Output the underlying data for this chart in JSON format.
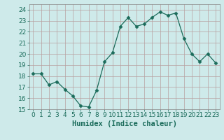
{
  "title": "",
  "xlabel": "Humidex (Indice chaleur)",
  "ylabel": "",
  "x": [
    0,
    1,
    2,
    3,
    4,
    5,
    6,
    7,
    8,
    9,
    10,
    11,
    12,
    13,
    14,
    15,
    16,
    17,
    18,
    19,
    20,
    21,
    22,
    23
  ],
  "y": [
    18.2,
    18.2,
    17.2,
    17.5,
    16.8,
    16.2,
    15.3,
    15.2,
    16.7,
    19.3,
    20.1,
    22.5,
    23.3,
    22.5,
    22.7,
    23.3,
    23.8,
    23.5,
    23.7,
    21.4,
    20.0,
    19.3,
    20.0,
    19.2
  ],
  "line_color": "#1a6b5a",
  "marker": "D",
  "marker_size": 2.5,
  "bg_color": "#ceeaea",
  "grid_color": "#b8a0a0",
  "ylim": [
    15,
    24.5
  ],
  "yticks": [
    15,
    16,
    17,
    18,
    19,
    20,
    21,
    22,
    23,
    24
  ],
  "xticks": [
    0,
    1,
    2,
    3,
    4,
    5,
    6,
    7,
    8,
    9,
    10,
    11,
    12,
    13,
    14,
    15,
    16,
    17,
    18,
    19,
    20,
    21,
    22,
    23
  ],
  "tick_fontsize": 6.5,
  "xlabel_fontsize": 7.5,
  "xlabel_color": "#1a6b5a",
  "tick_color": "#1a6b5a"
}
